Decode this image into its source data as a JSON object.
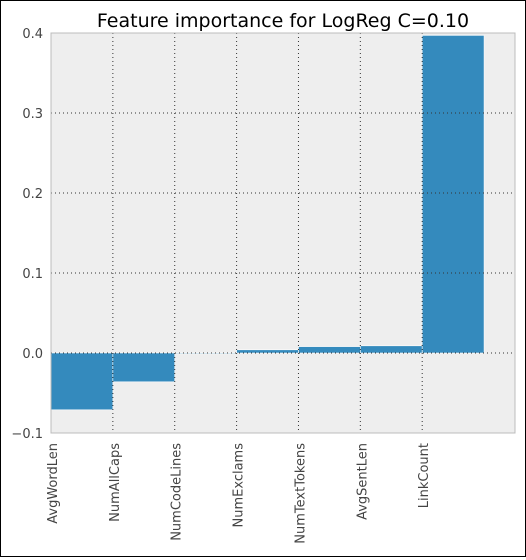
{
  "colors": {
    "bar": "#348ABD",
    "plot_background": "#EEEEEE",
    "grid": "#333333",
    "axis_text": "#444444",
    "title_text": "#000000"
  },
  "chart_data": {
    "type": "bar",
    "title": "Feature importance for LogReg C=0.10",
    "xlabel": "",
    "ylabel": "",
    "categories": [
      "AvgWordLen",
      "NumAllCaps",
      "NumCodeLines",
      "NumExclams",
      "NumTextTokens",
      "AvgSentLen",
      "LinkCount"
    ],
    "values": [
      -0.071,
      -0.036,
      -0.001,
      0.004,
      0.008,
      0.009,
      0.397
    ],
    "ylim": [
      -0.1,
      0.4
    ],
    "yticks": [
      -0.1,
      0.0,
      0.1,
      0.2,
      0.3,
      0.4
    ],
    "ytick_labels": [
      "−0.1",
      "0.0",
      "0.1",
      "0.2",
      "0.3",
      "0.4"
    ],
    "x_tick_labels_rotated": true,
    "grid": true,
    "grid_style": "dotted",
    "legend": "none"
  }
}
